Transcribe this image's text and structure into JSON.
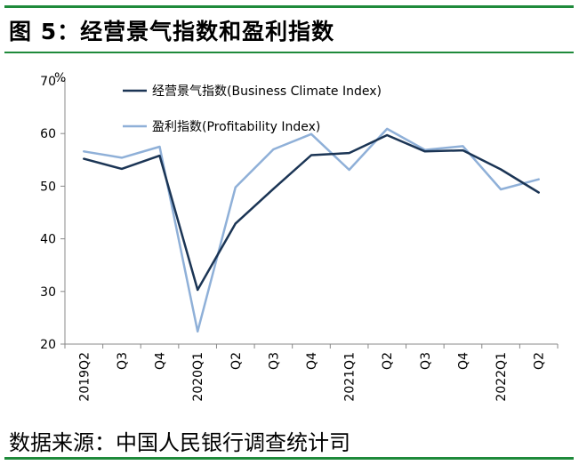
{
  "figure": {
    "title": "图 5：经营景气指数和盈利指数",
    "source": "数据来源：中国人民银行调查统计司"
  },
  "colors": {
    "rule_green": "#1f8a3b",
    "business_series": "#1b3555",
    "profit_series": "#8fb0d8"
  },
  "chart_data": {
    "type": "line",
    "title": "",
    "xlabel": "",
    "ylabel": "%",
    "ylim": [
      20,
      70
    ],
    "yticks": [
      20,
      30,
      40,
      50,
      60,
      70
    ],
    "grid": false,
    "legend_position": "top-left",
    "categories": [
      "2019Q2",
      "Q3",
      "Q4",
      "2020Q1",
      "Q2",
      "Q3",
      "Q4",
      "2021Q1",
      "Q2",
      "Q3",
      "Q4",
      "2022Q1",
      "Q2"
    ],
    "series": [
      {
        "name": "经营景气指数(Business Climate Index)",
        "color": "#1b3555",
        "values": [
          55.2,
          53.3,
          55.8,
          30.3,
          42.9,
          49.5,
          55.9,
          56.3,
          59.7,
          56.6,
          56.8,
          53.2,
          48.8
        ]
      },
      {
        "name": "盈利指数(Profitability Index)",
        "color": "#8fb0d8",
        "values": [
          56.6,
          55.4,
          57.5,
          22.4,
          49.8,
          57.0,
          59.9,
          53.1,
          60.9,
          56.9,
          57.6,
          49.4,
          51.3
        ]
      }
    ]
  }
}
